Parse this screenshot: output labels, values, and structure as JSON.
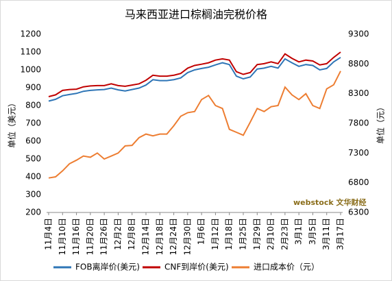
{
  "chart_data": {
    "type": "line",
    "title": "马来西亚进口棕榈油完税价格",
    "y_label": "单位（美元）",
    "y2_label": "单位（元）",
    "watermark": "webstock 文华财经",
    "categories": [
      "11月4日",
      null,
      "11月10日",
      null,
      "11月16日",
      null,
      "11月20日",
      null,
      "11月26日",
      null,
      "12月2日",
      null,
      "12月8日",
      null,
      "12月14日",
      null,
      "12月18日",
      null,
      "12月24日",
      null,
      "12月30日",
      null,
      "1月6日",
      null,
      "1月12日",
      null,
      "1月18日",
      null,
      "1月25日",
      null,
      "1月29日",
      null,
      "2月10日",
      null,
      "2月23日",
      null,
      "3月1日",
      null,
      "3月5日",
      null,
      "3月11日",
      null,
      "3月17日"
    ],
    "series": [
      {
        "name": "FOB离岸价(美元)",
        "color": "#2e75b6",
        "values": [
          825,
          835,
          855,
          862,
          868,
          880,
          885,
          888,
          890,
          898,
          888,
          882,
          890,
          898,
          915,
          945,
          940,
          940,
          945,
          955,
          985,
          1000,
          1008,
          1015,
          1028,
          1040,
          1030,
          965,
          950,
          960,
          1005,
          1010,
          1020,
          1010,
          1062,
          1040,
          1020,
          1030,
          1025,
          1000,
          1008,
          1045,
          1070
        ]
      },
      {
        "name": "CNF到岸价(美元)",
        "color": "#c00000",
        "values": [
          850,
          860,
          885,
          890,
          892,
          905,
          910,
          912,
          912,
          922,
          912,
          908,
          915,
          922,
          942,
          970,
          965,
          965,
          970,
          980,
          1010,
          1025,
          1032,
          1040,
          1055,
          1062,
          1055,
          990,
          975,
          985,
          1030,
          1035,
          1045,
          1035,
          1090,
          1065,
          1045,
          1055,
          1050,
          1028,
          1035,
          1070,
          1100
        ]
      },
      {
        "name": "进口成本价（元）",
        "color": "#ed7d31",
        "axis": "y2",
        "values": [
          6880,
          6900,
          7000,
          7120,
          7180,
          7250,
          7230,
          7300,
          7200,
          7250,
          7300,
          7420,
          7430,
          7560,
          7620,
          7590,
          7620,
          7620,
          7760,
          7920,
          7980,
          8000,
          8200,
          8270,
          8100,
          8050,
          7700,
          7650,
          7600,
          7820,
          8050,
          8000,
          8080,
          8100,
          8410,
          8280,
          8200,
          8300,
          8100,
          8050,
          8380,
          8450,
          8680
        ]
      }
    ],
    "ylim": [
      200,
      1200
    ],
    "yticks": [
      200,
      300,
      400,
      500,
      600,
      700,
      800,
      900,
      1000,
      1100,
      1200
    ],
    "y2lim": [
      6300,
      9300
    ],
    "y2ticks": [
      6300,
      6800,
      7300,
      7800,
      8300,
      8800,
      9300
    ],
    "grid": false,
    "legend": "bottom"
  }
}
